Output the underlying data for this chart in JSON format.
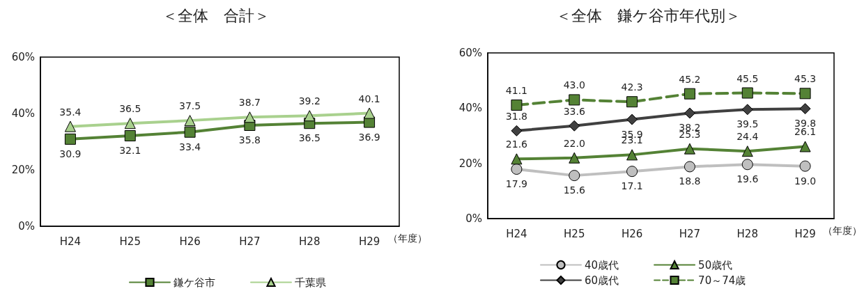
{
  "chart_data": [
    {
      "type": "line",
      "title": "＜全体　合計＞",
      "xlabel": "（年度）",
      "categories": [
        "H24",
        "H25",
        "H26",
        "H27",
        "H28",
        "H29"
      ],
      "ylim": [
        0,
        60
      ],
      "yticks": [
        {
          "value": 0,
          "label": "0%"
        },
        {
          "value": 20,
          "label": "20%"
        },
        {
          "value": 40,
          "label": "40%"
        },
        {
          "value": 60,
          "label": "60%"
        }
      ],
      "grid": false,
      "legend": "bottom",
      "data_labels": true,
      "series": [
        {
          "name": "鎌ケ谷市",
          "color": "#548235",
          "marker": "square",
          "values": [
            30.9,
            32.1,
            33.4,
            35.8,
            36.5,
            36.9
          ],
          "value_labels": [
            "30.9",
            "32.1",
            "33.4",
            "35.8",
            "36.5",
            "36.9"
          ]
        },
        {
          "name": "千葉県",
          "color": "#a9d18e",
          "marker": "triangle",
          "values": [
            35.4,
            36.5,
            37.5,
            38.7,
            39.2,
            40.1
          ],
          "value_labels": [
            "35.4",
            "36.5",
            "37.5",
            "38.7",
            "39.2",
            "40.1"
          ]
        }
      ]
    },
    {
      "type": "line",
      "title": "＜全体　鎌ケ谷市年代別＞",
      "xlabel": "（年度）",
      "categories": [
        "H24",
        "H25",
        "H26",
        "H27",
        "H28",
        "H29"
      ],
      "ylim": [
        0,
        60
      ],
      "yticks": [
        {
          "value": 0,
          "label": "0%"
        },
        {
          "value": 20,
          "label": "20%"
        },
        {
          "value": 40,
          "label": "40%"
        },
        {
          "value": 60,
          "label": "60%"
        }
      ],
      "grid": false,
      "legend": "bottom",
      "data_labels": true,
      "series": [
        {
          "name": "40歳代",
          "color": "#bfbfbf",
          "marker": "circle",
          "values": [
            17.9,
            15.6,
            17.1,
            18.8,
            19.6,
            19.0
          ],
          "value_labels": [
            "17.9",
            "15.6",
            "17.1",
            "18.8",
            "19.6",
            "19.0"
          ]
        },
        {
          "name": "50歳代",
          "color": "#548235",
          "marker": "triangle",
          "values": [
            21.6,
            22.0,
            23.1,
            25.3,
            24.4,
            26.1
          ],
          "value_labels": [
            "21.6",
            "22.0",
            "23.1",
            "25.3",
            "24.4",
            "26.1"
          ]
        },
        {
          "name": "60歳代",
          "color": "#404040",
          "marker": "diamond",
          "values": [
            31.8,
            33.6,
            35.9,
            38.2,
            39.5,
            39.8
          ],
          "value_labels": [
            "31.8",
            "33.6",
            "35.9",
            "38.2",
            "39.5",
            "39.8"
          ]
        },
        {
          "name": "70～74歳",
          "color": "#548235",
          "marker": "square",
          "line_style": "dashed",
          "values": [
            41.1,
            43.0,
            42.3,
            45.2,
            45.5,
            45.3
          ],
          "value_labels": [
            "41.1",
            "43.0",
            "42.3",
            "45.2",
            "45.5",
            "45.3"
          ]
        }
      ]
    }
  ]
}
